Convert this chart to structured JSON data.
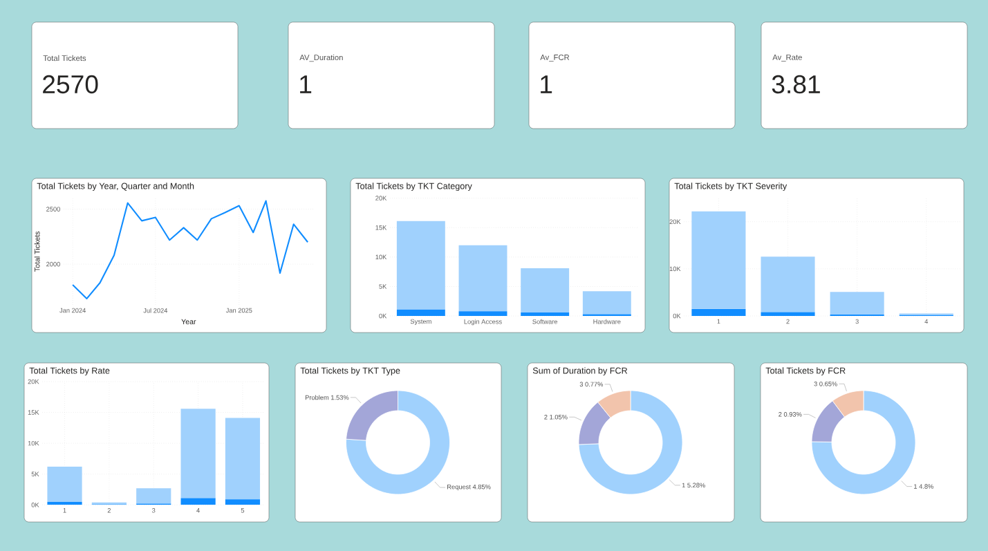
{
  "chart_data": [
    {
      "type": "other",
      "title": "Total Tickets",
      "annotations": [
        "2570"
      ]
    },
    {
      "type": "other",
      "title": "AV_Duration",
      "annotations": [
        "1"
      ]
    },
    {
      "type": "other",
      "title": "Av_FCR",
      "annotations": [
        "1"
      ]
    },
    {
      "type": "other",
      "title": "Av_Rate",
      "annotations": [
        "3.81"
      ]
    },
    {
      "type": "line",
      "title": "Total Tickets by Year, Quarter and Month",
      "xlabel": "Year",
      "ylabel": "Total Tickets",
      "x": [
        "2024-01",
        "2024-02",
        "2024-03",
        "2024-04",
        "2024-05",
        "2024-06",
        "2024-07",
        "2024-08",
        "2024-09",
        "2024-10",
        "2024-11",
        "2024-12",
        "2025-01",
        "2025-02",
        "2025-03",
        "2025-04",
        "2025-05",
        "2025-06"
      ],
      "series": [
        {
          "color": "#118dff",
          "values": [
            1812,
            1687,
            1831,
            2081,
            2556,
            2394,
            2425,
            2219,
            2331,
            2219,
            2413,
            2469,
            2531,
            2288,
            2575,
            1919,
            2363,
            2200
          ]
        }
      ],
      "xlim": [
        "2023-12-12",
        "2025-06-14"
      ],
      "xticks": [
        {
          "value": "2024-01",
          "label": "Jan 2024"
        },
        {
          "value": "2024-07",
          "label": "Jul 2024"
        },
        {
          "value": "2025-01",
          "label": "Jan 2025"
        }
      ],
      "ylim": [
        1630,
        2600
      ],
      "yticks": [
        2000,
        2500
      ],
      "grid": true
    },
    {
      "type": "bar",
      "title": "Total Tickets by TKT Category",
      "categories": [
        "System",
        "Login Access",
        "Software",
        "Hardware"
      ],
      "stacked": true,
      "series": [
        {
          "color": "#118dff",
          "values": [
            1100,
            800,
            600,
            300
          ]
        },
        {
          "color": "#a0d1fd",
          "values": [
            15000,
            11200,
            7500,
            3900
          ]
        }
      ],
      "ylim": [
        0,
        20000
      ],
      "yticks": [
        {
          "value": 0,
          "label": "0K"
        },
        {
          "value": 5000,
          "label": "5K"
        },
        {
          "value": 10000,
          "label": "10K"
        },
        {
          "value": 15000,
          "label": "15K"
        },
        {
          "value": 20000,
          "label": "20K"
        }
      ],
      "grid": "y"
    },
    {
      "type": "bar",
      "title": "Total Tickets by TKT Severity",
      "categories": [
        "1",
        "2",
        "3",
        "4"
      ],
      "stacked": true,
      "series": [
        {
          "color": "#118dff",
          "values": [
            1500,
            800,
            300,
            200
          ]
        },
        {
          "color": "#a0d1fd",
          "values": [
            20700,
            11800,
            4800,
            300
          ]
        }
      ],
      "ylim": [
        0,
        25000
      ],
      "yticks": [
        {
          "value": 0,
          "label": "0K"
        },
        {
          "value": 10000,
          "label": "10K"
        },
        {
          "value": 20000,
          "label": "20K"
        }
      ],
      "grid": true
    },
    {
      "type": "bar",
      "title": "Total Tickets by Rate",
      "categories": [
        "1",
        "2",
        "3",
        "4",
        "5"
      ],
      "stacked": true,
      "series": [
        {
          "color": "#118dff",
          "values": [
            500,
            100,
            200,
            1100,
            900
          ]
        },
        {
          "color": "#a0d1fd",
          "values": [
            5700,
            300,
            2500,
            14500,
            13200
          ]
        }
      ],
      "ylim": [
        0,
        20000
      ],
      "yticks": [
        {
          "value": 0,
          "label": "0K"
        },
        {
          "value": 5000,
          "label": "5K"
        },
        {
          "value": 10000,
          "label": "10K"
        },
        {
          "value": 15000,
          "label": "15K"
        },
        {
          "value": 20000,
          "label": "20K"
        }
      ],
      "grid": true
    },
    {
      "type": "donut",
      "title": "Total Tickets by TKT Type",
      "categories": [
        "Request",
        "Problem"
      ],
      "values": [
        4.85,
        1.53
      ],
      "value_labels": [
        "4.85%",
        "1.53%"
      ],
      "colors": [
        "#a0d1fd",
        "#a3a6d8"
      ]
    },
    {
      "type": "donut",
      "title": "Sum of Duration by FCR",
      "categories": [
        "1",
        "2",
        "3"
      ],
      "values": [
        5.28,
        1.05,
        0.77
      ],
      "value_labels": [
        "5.28%",
        "1.05%",
        "0.77%"
      ],
      "colors": [
        "#a0d1fd",
        "#a3a6d8",
        "#f2c4ac"
      ]
    },
    {
      "type": "donut",
      "title": "Total Tickets by FCR",
      "categories": [
        "1",
        "2",
        "3"
      ],
      "values": [
        4.8,
        0.93,
        0.65
      ],
      "value_labels": [
        "4.8%",
        "0.93%",
        "0.65%"
      ],
      "colors": [
        "#a0d1fd",
        "#a3a6d8",
        "#f2c4ac"
      ]
    }
  ]
}
